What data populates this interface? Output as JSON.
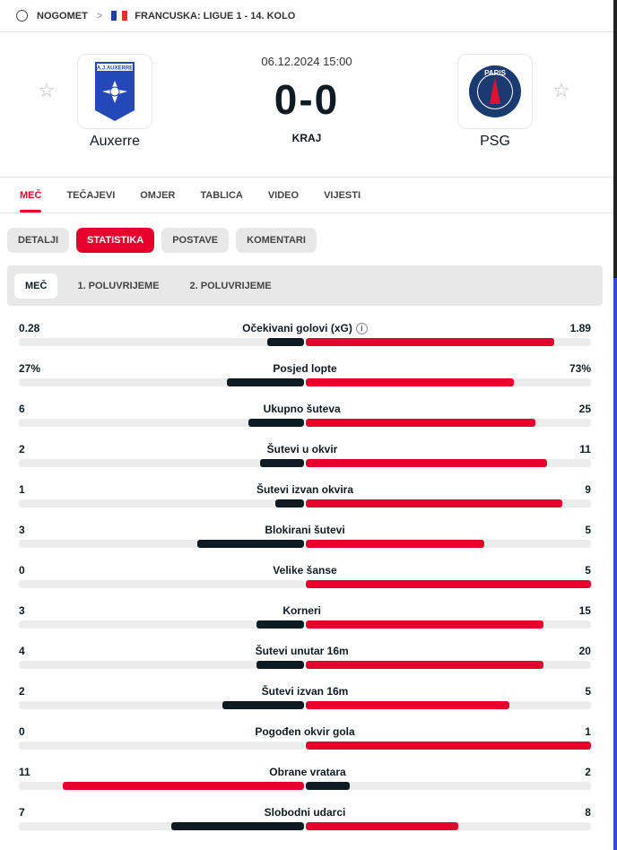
{
  "breadcrumb": {
    "sport": "NOGOMET",
    "league": "FRANCUSKA: LIGUE 1 - 14. KOLO"
  },
  "match": {
    "date": "06.12.2024 15:00",
    "score": "0-0",
    "status": "KRAJ",
    "home": "Auxerre",
    "away": "PSG",
    "home_logo_text": "A.J.AUXERRE",
    "away_logo_text": "PARIS"
  },
  "tabs": [
    "MEČ",
    "TEČAJEVI",
    "OMJER",
    "TABLICA",
    "VIDEO",
    "VIJESTI"
  ],
  "pills": [
    "DETALJI",
    "STATISTIKA",
    "POSTAVE",
    "KOMENTARI"
  ],
  "periods": [
    "MEČ",
    "1. POLUVRIJEME",
    "2. POLUVRIJEME"
  ],
  "colors": {
    "accent": "#e8002c",
    "dark": "#0f1b23"
  },
  "stats": [
    {
      "label": "Očekivani golovi (xG)",
      "home": "0.28",
      "away": "1.89",
      "h": 0.28,
      "a": 1.89,
      "info": true
    },
    {
      "label": "Posjed lopte",
      "home": "27%",
      "away": "73%",
      "h": 27,
      "a": 73
    },
    {
      "label": "Ukupno šuteva",
      "home": "6",
      "away": "25",
      "h": 6,
      "a": 25
    },
    {
      "label": "Šutevi u okvir",
      "home": "2",
      "away": "11",
      "h": 2,
      "a": 11
    },
    {
      "label": "Šutevi izvan okvira",
      "home": "1",
      "away": "9",
      "h": 1,
      "a": 9
    },
    {
      "label": "Blokirani šutevi",
      "home": "3",
      "away": "5",
      "h": 3,
      "a": 5
    },
    {
      "label": "Velike šanse",
      "home": "0",
      "away": "5",
      "h": 0,
      "a": 5
    },
    {
      "label": "Korneri",
      "home": "3",
      "away": "15",
      "h": 3,
      "a": 15
    },
    {
      "label": "Šutevi unutar 16m",
      "home": "4",
      "away": "20",
      "h": 4,
      "a": 20
    },
    {
      "label": "Šutevi izvan 16m",
      "home": "2",
      "away": "5",
      "h": 2,
      "a": 5
    },
    {
      "label": "Pogođen okvir gola",
      "home": "0",
      "away": "1",
      "h": 0,
      "a": 1
    },
    {
      "label": "Obrane vratara",
      "home": "11",
      "away": "2",
      "h": 11,
      "a": 2
    },
    {
      "label": "Slobodni udarci",
      "home": "7",
      "away": "8",
      "h": 7,
      "a": 8
    }
  ]
}
